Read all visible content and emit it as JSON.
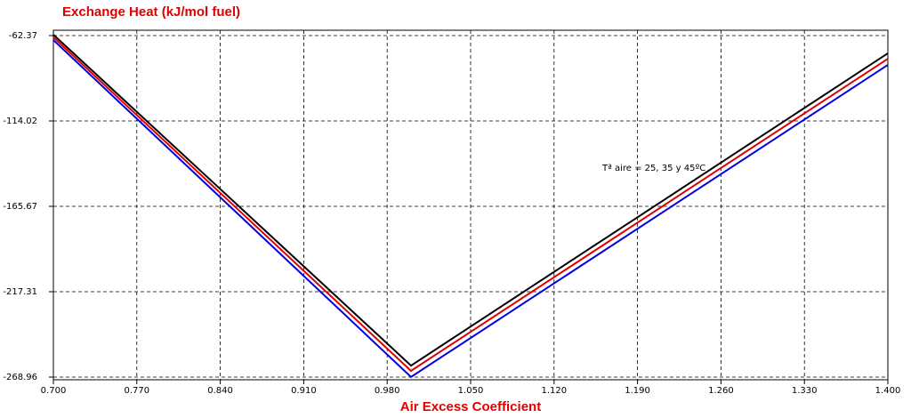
{
  "chart_data": {
    "type": "line",
    "title": "Exchange Heat (kJ/mol fuel)",
    "x_label": "Air Excess Coefficient",
    "annotation": "Tª aire = 25, 35 y 45ºC",
    "x": [
      0.7,
      1.0,
      1.4
    ],
    "series": [
      {
        "color": "#000000",
        "values": [
          -61.8,
          -262.0,
          -73.1
        ]
      },
      {
        "color": "#e00000",
        "values": [
          -63.4,
          -265.2,
          -76.4
        ]
      },
      {
        "color": "#0000e0",
        "values": [
          -65.1,
          -268.9,
          -80.1
        ]
      }
    ],
    "xlim": [
      0.7,
      1.4
    ],
    "xticks": [
      {
        "value": 0.7,
        "label": "0.700"
      },
      {
        "value": 0.77,
        "label": "0.770"
      },
      {
        "value": 0.84,
        "label": "0.840"
      },
      {
        "value": 0.91,
        "label": "0.910"
      },
      {
        "value": 0.98,
        "label": "0.980"
      },
      {
        "value": 1.05,
        "label": "1.050"
      },
      {
        "value": 1.12,
        "label": "1.120"
      },
      {
        "value": 1.19,
        "label": "1.190"
      },
      {
        "value": 1.26,
        "label": "1.260"
      },
      {
        "value": 1.33,
        "label": "1.330"
      },
      {
        "value": 1.4,
        "label": "1.400"
      }
    ],
    "ylim": [
      -268.96,
      -62.37
    ],
    "yticks": [
      -268.96,
      -217.31,
      -165.67,
      -114.02,
      -62.37
    ],
    "grid": true
  }
}
